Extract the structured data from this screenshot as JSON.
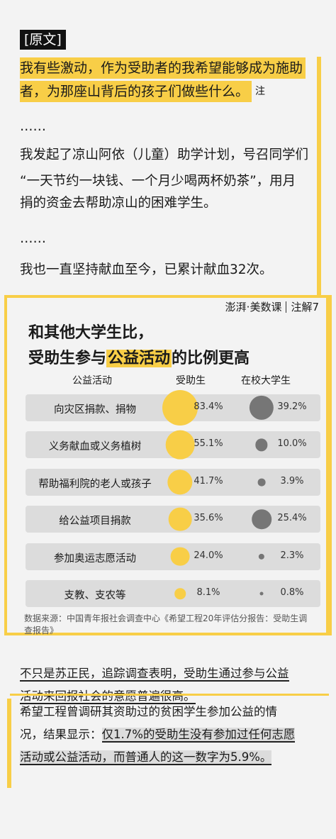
{
  "original": {
    "tag": "[原文]",
    "hl1": "我有些激动，作为受助者的我希望能够成为施助",
    "hl2": "者，为那座山背后的孩子们做些什么。",
    "note": "注",
    "ellipsis1": "……",
    "p1": "我发起了凉山阿依（儿童）助学计划，号召同学们",
    "p2": "“一天节约一块钱、一个月少喝两杯奶茶”，用月",
    "p3": "捐的资金去帮助凉山的困难学生。",
    "ellipsis2": "……",
    "p4": "我也一直坚持献血至今，已累计献血32次。"
  },
  "badge": {
    "brand": "澎湃·美数课",
    "note": "注解7"
  },
  "chart_data": {
    "type": "table",
    "title_line1": "和其他大学生比，",
    "title_line2_pre": "受助生参与",
    "title_line2_hl": "公益活动",
    "title_line2_post": "的比例更高",
    "columns": [
      "公益活动",
      "受助生",
      "在校大学生"
    ],
    "categories": [
      "向灾区捐款、捐物",
      "义务献血或义务植树",
      "帮助福利院的老人或孩子",
      "给公益项目捐款",
      "参加奥运志愿活动",
      "支教、支农等"
    ],
    "series": [
      {
        "name": "受助生",
        "values": [
          83.4,
          55.1,
          41.7,
          35.6,
          24.0,
          8.1
        ],
        "labels": [
          "83.4%",
          "55.1%",
          "41.7%",
          "35.6%",
          "24.0%",
          "8.1%"
        ],
        "color": "#f8ce47"
      },
      {
        "name": "在校大学生",
        "values": [
          39.2,
          10.0,
          3.9,
          25.4,
          2.3,
          0.8
        ],
        "labels": [
          "39.2%",
          "10.0%",
          "3.9%",
          "25.4%",
          "2.3%",
          "0.8%"
        ],
        "color": "#767676"
      }
    ],
    "source": "数据来源：中国青年报社会调查中心《希望工程20年评估分报告：受助生调查报告》"
  },
  "footer": {
    "l1": "不只是苏正民，追踪调查表明，受助生通过参与公益",
    "l2": "活动来回报社会的意愿普遍很高。",
    "l3": "希望工程曾调研其资助过的贫困学生参加公益的情",
    "l4_pre": "况，结果显示：",
    "l4_box": "仅1.7%的受助生没有参加过任何志愿",
    "l5": "活动或公益活动，而普通人的这一数字为5.9%。"
  }
}
